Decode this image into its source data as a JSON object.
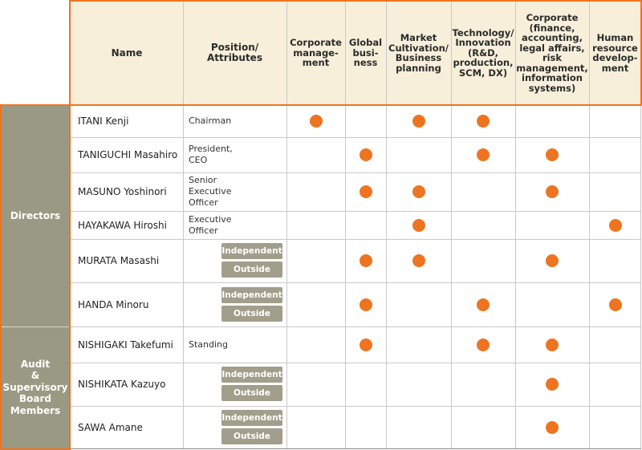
{
  "colors": {
    "header_bg": "#f7efda",
    "accent_orange": "#ee7421",
    "group_bg": "#9a9a84",
    "badge_bg": "#a19e8c",
    "grid_line": "#c9c9c9"
  },
  "header": {
    "name": "Name",
    "position": "Position/\nAttributes",
    "skills": [
      "Corporate\nmanage-\nment",
      "Global\nbusi-\nness",
      "Market\nCultivation/\nBusiness\nplanning",
      "Technology/\nInnovation\n(R&D,\nproduction,\nSCM, DX)",
      "Corporate\n(finance,\naccounting,\nlegal affairs,\nrisk\nmanagement,\ninformation\nsystems)",
      "Human\nresource\ndevelop-\nment"
    ]
  },
  "groups": [
    {
      "label": "Directors",
      "rows": [
        0,
        5
      ]
    },
    {
      "label": "Audit\n&\nSupervisory\nBoard\nMembers",
      "rows": [
        6,
        8
      ]
    }
  ],
  "badges": {
    "independent": "Independent",
    "outside": "Outside"
  },
  "members": [
    {
      "name": "ITANI Kenji",
      "position": "Chairman",
      "independent": false,
      "outside": false,
      "skills": [
        1,
        0,
        1,
        1,
        0,
        0
      ]
    },
    {
      "name": "TANIGUCHI Masahiro",
      "position": "President,\n  CEO",
      "independent": false,
      "outside": false,
      "skills": [
        0,
        1,
        0,
        1,
        1,
        0
      ]
    },
    {
      "name": "MASUNO Yoshinori",
      "position": "   Senior\nExecutive\n   Officer",
      "independent": false,
      "outside": false,
      "skills": [
        0,
        1,
        1,
        0,
        1,
        0
      ]
    },
    {
      "name": "HAYAKAWA Hiroshi",
      "position": "Executive\n  Officer",
      "independent": false,
      "outside": false,
      "skills": [
        0,
        0,
        1,
        0,
        0,
        1
      ]
    },
    {
      "name": "MURATA Masashi",
      "position": "",
      "independent": true,
      "outside": true,
      "skills": [
        0,
        1,
        1,
        0,
        1,
        0
      ]
    },
    {
      "name": "HANDA Minoru",
      "position": "",
      "independent": true,
      "outside": true,
      "skills": [
        0,
        1,
        0,
        1,
        0,
        1
      ]
    },
    {
      "name": "NISHIGAKI Takefumi",
      "position": "Standing",
      "independent": false,
      "outside": false,
      "skills": [
        0,
        1,
        0,
        1,
        1,
        0
      ]
    },
    {
      "name": "NISHIKATA Kazuyo",
      "position": "",
      "independent": true,
      "outside": true,
      "skills": [
        0,
        0,
        0,
        0,
        1,
        0
      ]
    },
    {
      "name": "SAWA Amane",
      "position": "",
      "independent": true,
      "outside": true,
      "skills": [
        0,
        0,
        0,
        0,
        1,
        0
      ]
    }
  ]
}
